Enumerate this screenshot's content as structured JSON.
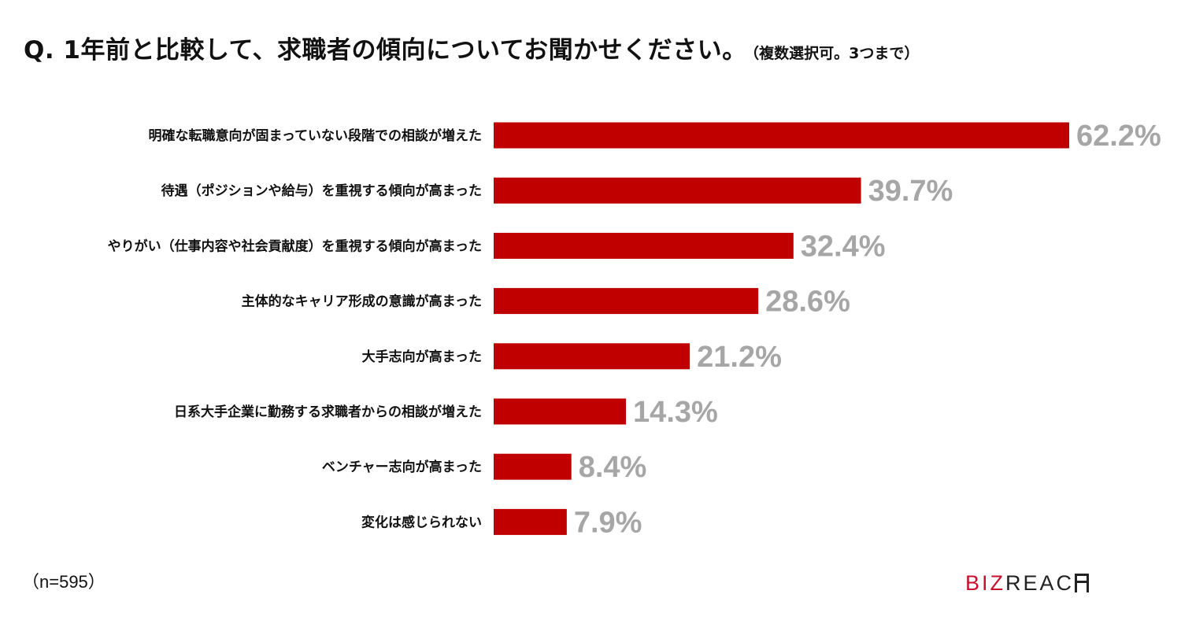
{
  "title": {
    "main": "Q. 1年前と比較して、求職者の傾向についてお聞かせください。",
    "sub": "（複数選択可。3つまで）"
  },
  "note": "（n=595）",
  "logo": {
    "part1": "BIZ",
    "part2": "REAC",
    "color1": "#c8102e",
    "color2": "#222222",
    "mark": "logo-h-glyph"
  },
  "colors": {
    "bar": "#c00000",
    "value_label": "#a6a6a6"
  },
  "chart_data": {
    "type": "bar",
    "orientation": "horizontal",
    "title": "Q. 1年前と比較して、求職者の傾向についてお聞かせください。",
    "categories": [
      "明確な転職意向が固まっていない段階での相談が増えた",
      "待遇（ポジションや給与）を重視する傾向が高まった",
      "やりがい（仕事内容や社会貢献度）を重視する傾向が高まった",
      "主体的なキャリア形成の意識が高まった",
      "大手志向が高まった",
      "日系大手企業に勤務する求職者からの相談が増えた",
      "ベンチャー志向が高まった",
      "変化は感じられない"
    ],
    "values": [
      62.2,
      39.7,
      32.4,
      28.6,
      21.2,
      14.3,
      8.4,
      7.9
    ],
    "value_labels": [
      "62.2%",
      "39.7%",
      "32.4%",
      "28.6%",
      "21.2%",
      "14.3%",
      "8.4%",
      "7.9%"
    ],
    "unit": "%",
    "grid": false,
    "legend": "none"
  }
}
